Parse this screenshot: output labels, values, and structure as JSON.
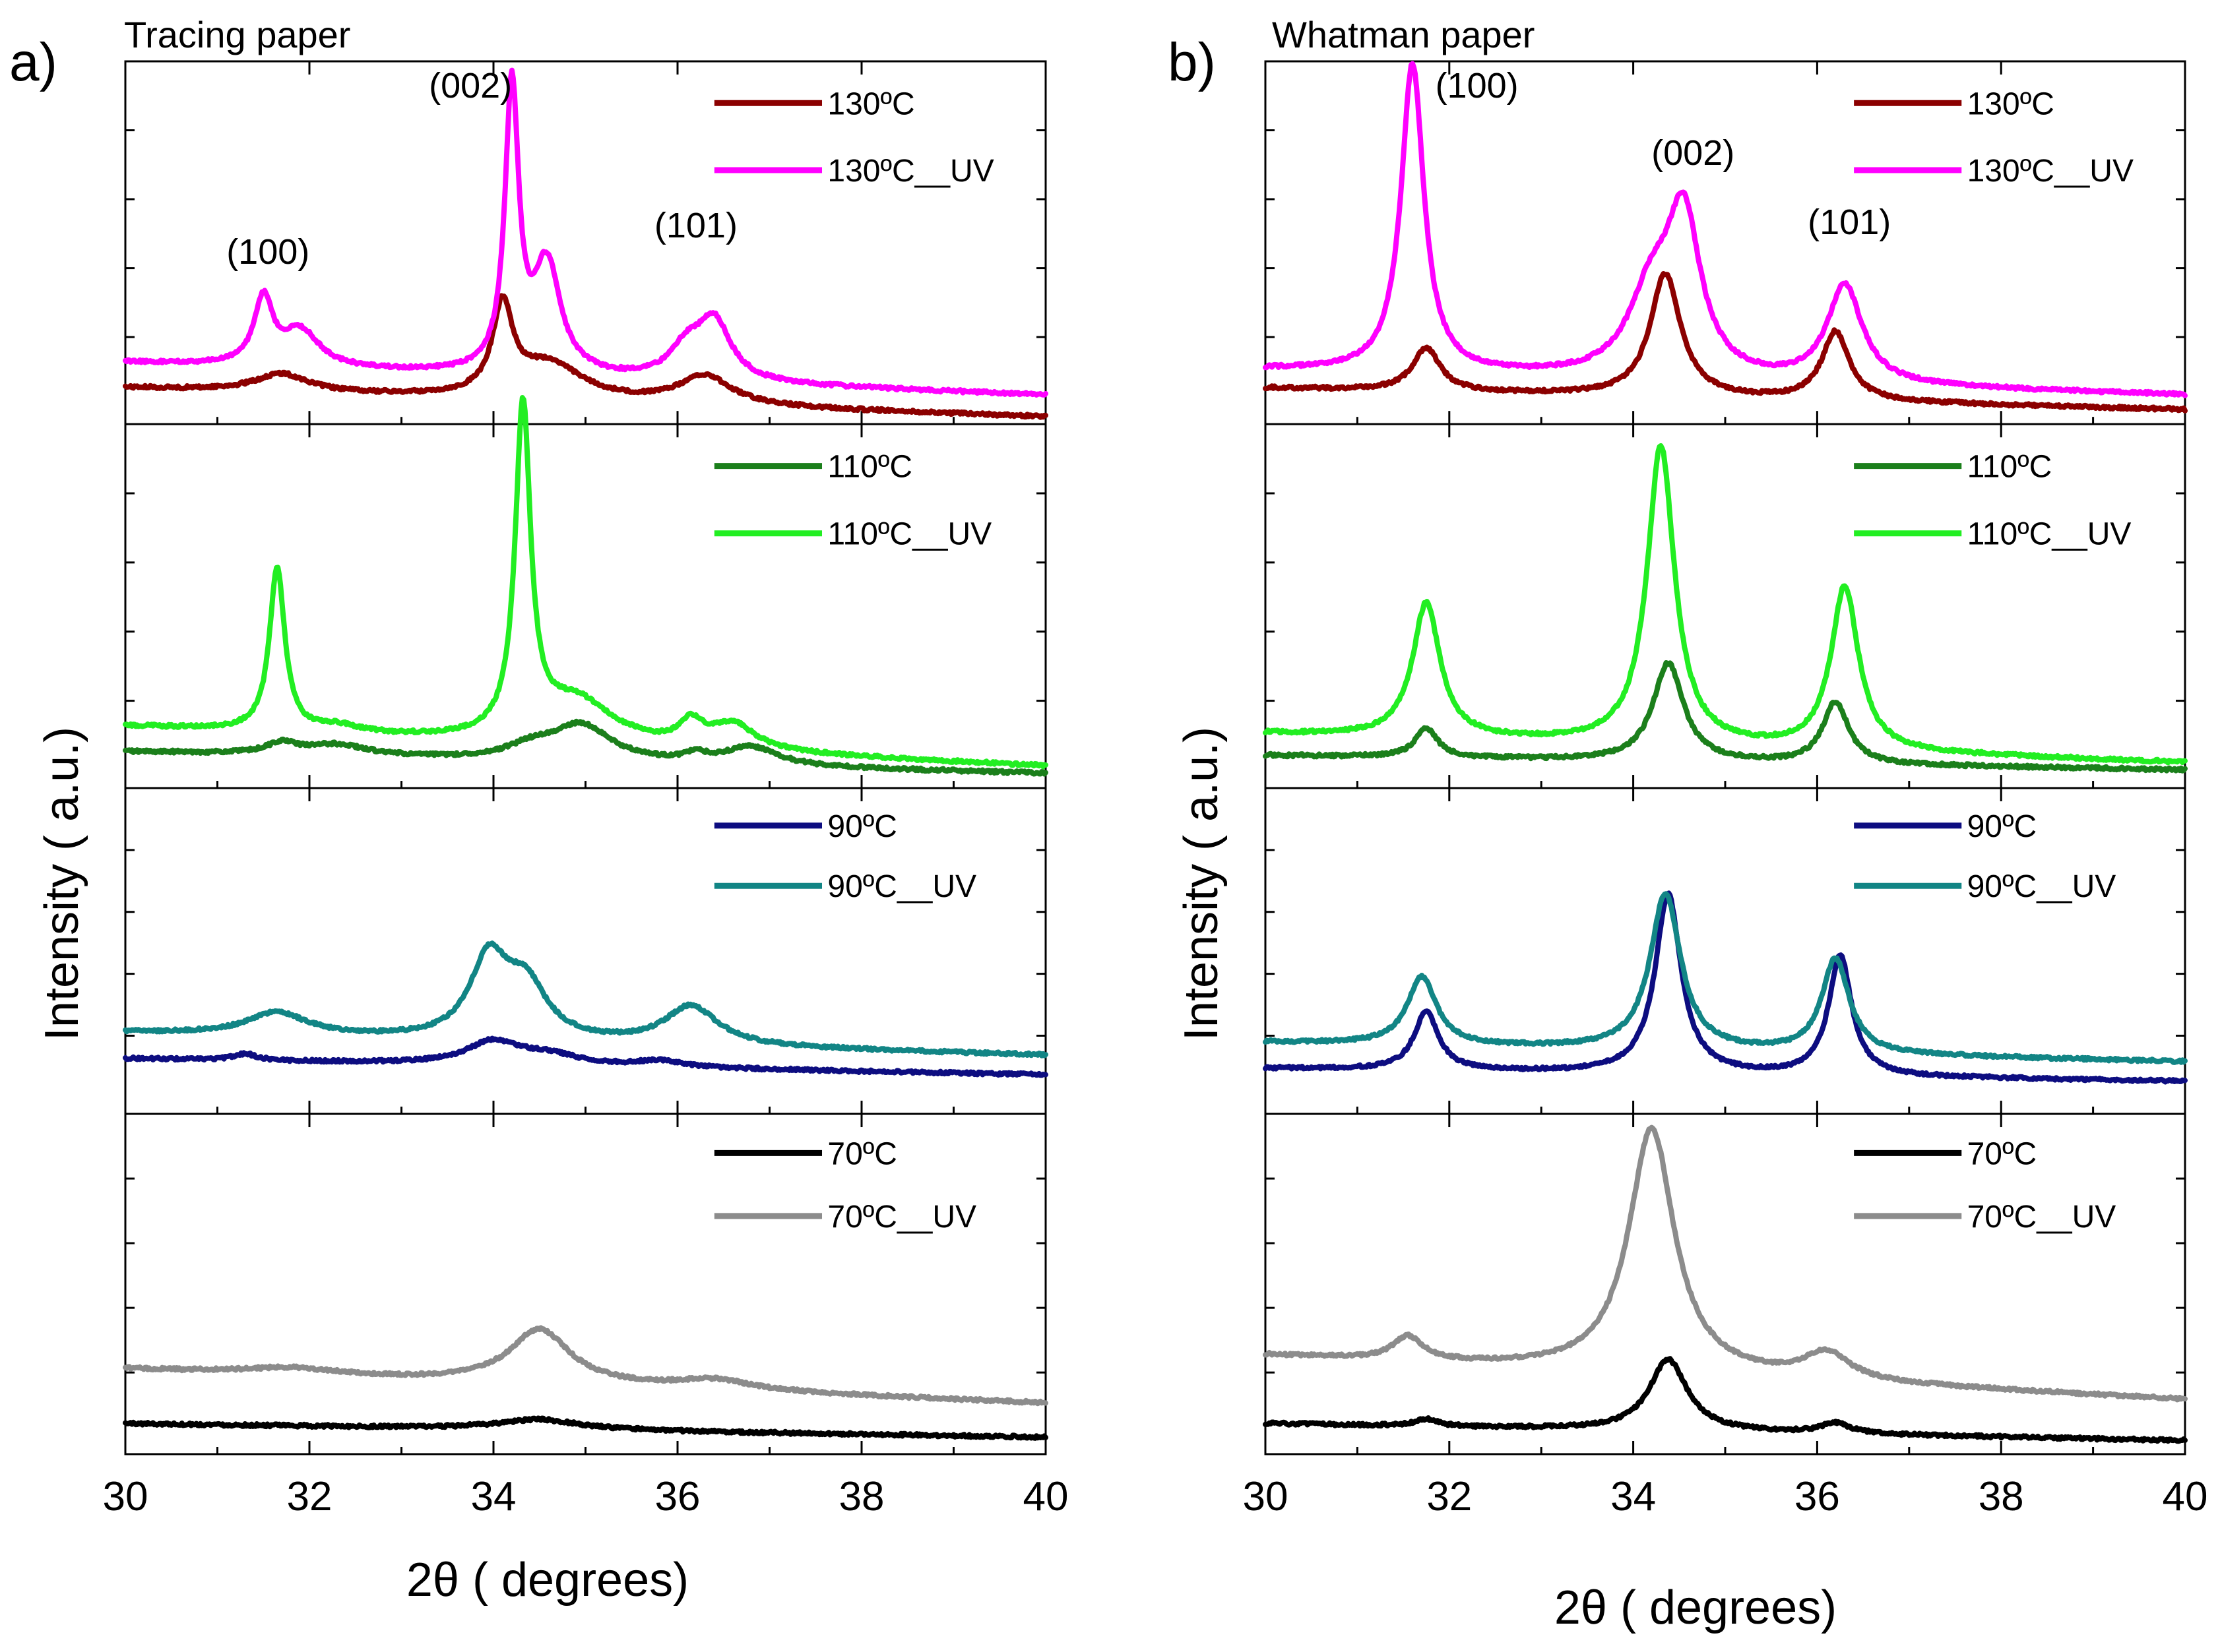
{
  "chart_data": [
    {
      "type": "line",
      "panel_letter": "a)",
      "title": "Tracing paper",
      "xlabel": "2θ  ( degrees)",
      "ylabel": "Intensity  ( a.u.)",
      "xlim": [
        30,
        40
      ],
      "xticks": [
        30,
        32,
        34,
        36,
        38,
        40
      ],
      "grid": false,
      "subplots": [
        {
          "peak_labels": [
            {
              "text": "(100)",
              "x": 31.55
            },
            {
              "text": "(002)",
              "x": 33.75
            },
            {
              "text": "(101)",
              "x": 36.2
            }
          ],
          "series": [
            {
              "name": "130ºC",
              "color": "#8b0000",
              "baseline": [
                0.1,
                0.02
              ],
              "noise": 0.004,
              "peaks": [
                [
                  31.7,
                  0.05,
                  0.35
                ],
                [
                  34.1,
                  0.24,
                  0.13
                ],
                [
                  34.6,
                  0.1,
                  0.45
                ],
                [
                  36.3,
                  0.08,
                  0.35
                ]
              ]
            },
            {
              "name": "130ºC__UV",
              "color": "#ff00ff",
              "baseline": [
                0.17,
                0.08
              ],
              "noise": 0.004,
              "peaks": [
                [
                  31.5,
                  0.18,
                  0.12
                ],
                [
                  31.9,
                  0.1,
                  0.25
                ],
                [
                  34.2,
                  0.78,
                  0.09
                ],
                [
                  34.58,
                  0.3,
                  0.18
                ],
                [
                  36.1,
                  0.08,
                  0.22
                ],
                [
                  36.4,
                  0.16,
                  0.22
                ]
              ]
            }
          ]
        },
        {
          "series": [
            {
              "name": "110ºC",
              "color": "#1b7f1b",
              "baseline": [
                0.1,
                0.04
              ],
              "noise": 0.004,
              "peaks": [
                [
                  31.7,
                  0.03,
                  0.2
                ],
                [
                  32.3,
                  0.03,
                  0.4
                ],
                [
                  34.4,
                  0.03,
                  0.3
                ],
                [
                  34.95,
                  0.1,
                  0.4
                ],
                [
                  36.2,
                  0.02,
                  0.15
                ],
                [
                  36.8,
                  0.05,
                  0.35
                ]
              ]
            },
            {
              "name": "110ºC__UV",
              "color": "#22ee22",
              "baseline": [
                0.17,
                0.06
              ],
              "noise": 0.004,
              "peaks": [
                [
                  31.65,
                  0.45,
                  0.1
                ],
                [
                  32.3,
                  0.02,
                  0.3
                ],
                [
                  34.32,
                  0.9,
                  0.1
                ],
                [
                  34.9,
                  0.12,
                  0.5
                ],
                [
                  36.15,
                  0.06,
                  0.15
                ],
                [
                  36.6,
                  0.07,
                  0.3
                ]
              ]
            }
          ]
        },
        {
          "series": [
            {
              "name": "90ºC",
              "color": "#0d0d80",
              "baseline": [
                0.17,
                0.12
              ],
              "noise": 0.004,
              "peaks": [
                [
                  31.3,
                  0.02,
                  0.15
                ],
                [
                  34.0,
                  0.07,
                  0.35
                ],
                [
                  34.6,
                  0.03,
                  0.4
                ],
                [
                  35.8,
                  0.02,
                  0.3
                ]
              ]
            },
            {
              "name": "90ºC__UV",
              "color": "#128585",
              "baseline": [
                0.25,
                0.18
              ],
              "noise": 0.004,
              "peaks": [
                [
                  31.65,
                  0.07,
                  0.4
                ],
                [
                  33.95,
                  0.24,
                  0.25
                ],
                [
                  34.35,
                  0.16,
                  0.28
                ],
                [
                  36.15,
                  0.12,
                  0.35
                ]
              ]
            }
          ]
        },
        {
          "series": [
            {
              "name": "70ºC",
              "color": "#000000",
              "baseline": [
                0.09,
                0.05
              ],
              "noise": 0.004,
              "peaks": [
                [
                  34.5,
                  0.03,
                  0.55
                ]
              ]
            },
            {
              "name": "70ºC__UV",
              "color": "#8c8c8c",
              "baseline": [
                0.25,
                0.15
              ],
              "noise": 0.004,
              "peaks": [
                [
                  31.8,
                  0.02,
                  0.6
                ],
                [
                  34.5,
                  0.16,
                  0.4
                ],
                [
                  36.4,
                  0.03,
                  0.5
                ]
              ]
            }
          ]
        }
      ]
    },
    {
      "type": "line",
      "panel_letter": "b)",
      "title": "Whatman paper",
      "xlabel": "2θ  ( degrees)",
      "ylabel": "Intensity  ( a.u.)",
      "xlim": [
        30,
        40
      ],
      "xticks": [
        30,
        32,
        34,
        36,
        38,
        40
      ],
      "grid": false,
      "subplots": [
        {
          "peak_labels": [
            {
              "text": "(100)",
              "x": 32.3
            },
            {
              "text": "(002)",
              "x": 34.65
            },
            {
              "text": "(101)",
              "x": 36.35
            }
          ],
          "series": [
            {
              "name": "130ºC",
              "color": "#8b0000",
              "baseline": [
                0.1,
                0.04
              ],
              "noise": 0.004,
              "peaks": [
                [
                  31.75,
                  0.12,
                  0.18
                ],
                [
                  34.35,
                  0.34,
                  0.2
                ],
                [
                  36.2,
                  0.19,
                  0.18
                ]
              ]
            },
            {
              "name": "130ºC__UV",
              "color": "#ff00ff",
              "baseline": [
                0.15,
                0.08
              ],
              "noise": 0.004,
              "peaks": [
                [
                  31.6,
                  0.85,
                  0.15
                ],
                [
                  34.2,
                  0.22,
                  0.3
                ],
                [
                  34.55,
                  0.42,
                  0.22
                ],
                [
                  36.3,
                  0.27,
                  0.23
                ]
              ]
            }
          ]
        },
        {
          "series": [
            {
              "name": "110ºC",
              "color": "#1b7f1b",
              "baseline": [
                0.09,
                0.05
              ],
              "noise": 0.004,
              "peaks": [
                [
                  31.75,
                  0.08,
                  0.15
                ],
                [
                  34.38,
                  0.27,
                  0.2
                ],
                [
                  36.2,
                  0.17,
                  0.17
                ]
              ]
            },
            {
              "name": "110ºC__UV",
              "color": "#22ee22",
              "baseline": [
                0.15,
                0.07
              ],
              "noise": 0.004,
              "peaks": [
                [
                  31.75,
                  0.37,
                  0.18
                ],
                [
                  34.3,
                  0.82,
                  0.18
                ],
                [
                  36.3,
                  0.45,
                  0.18
                ]
              ]
            }
          ]
        },
        {
          "series": [
            {
              "name": "90ºC",
              "color": "#0d0d80",
              "baseline": [
                0.14,
                0.1
              ],
              "noise": 0.004,
              "peaks": [
                [
                  31.75,
                  0.18,
                  0.16
                ],
                [
                  34.38,
                  0.55,
                  0.17
                ],
                [
                  36.25,
                  0.37,
                  0.15
                ]
              ]
            },
            {
              "name": "90ºC__UV",
              "color": "#128585",
              "baseline": [
                0.22,
                0.16
              ],
              "noise": 0.004,
              "peaks": [
                [
                  31.7,
                  0.21,
                  0.19
                ],
                [
                  34.35,
                  0.48,
                  0.2
                ],
                [
                  36.2,
                  0.29,
                  0.18
                ]
              ]
            }
          ]
        },
        {
          "series": [
            {
              "name": "70ºC",
              "color": "#000000",
              "baseline": [
                0.09,
                0.04
              ],
              "noise": 0.004,
              "peaks": [
                [
                  31.75,
                  0.02,
                  0.15
                ],
                [
                  34.38,
                  0.21,
                  0.25
                ],
                [
                  36.2,
                  0.03,
                  0.2
                ]
              ]
            },
            {
              "name": "70ºC__UV",
              "color": "#8c8c8c",
              "baseline": [
                0.29,
                0.16
              ],
              "noise": 0.004,
              "peaks": [
                [
                  31.55,
                  0.07,
                  0.2
                ],
                [
                  34.2,
                  0.72,
                  0.3
                ],
                [
                  36.1,
                  0.08,
                  0.3
                ]
              ]
            }
          ]
        }
      ]
    }
  ]
}
